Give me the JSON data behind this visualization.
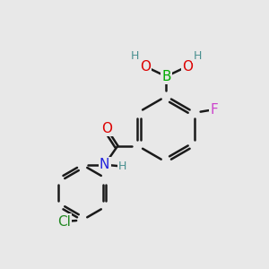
{
  "bg_color": "#e8e8e8",
  "bond_color": "#1a1a1a",
  "bond_width": 1.8,
  "atom_colors": {
    "B": "#00aa00",
    "O": "#dd0000",
    "H": "#4a9090",
    "F": "#cc44cc",
    "N": "#2222dd",
    "Cl": "#228822",
    "C": "#1a1a1a"
  },
  "font_size_main": 11,
  "font_size_small": 9
}
